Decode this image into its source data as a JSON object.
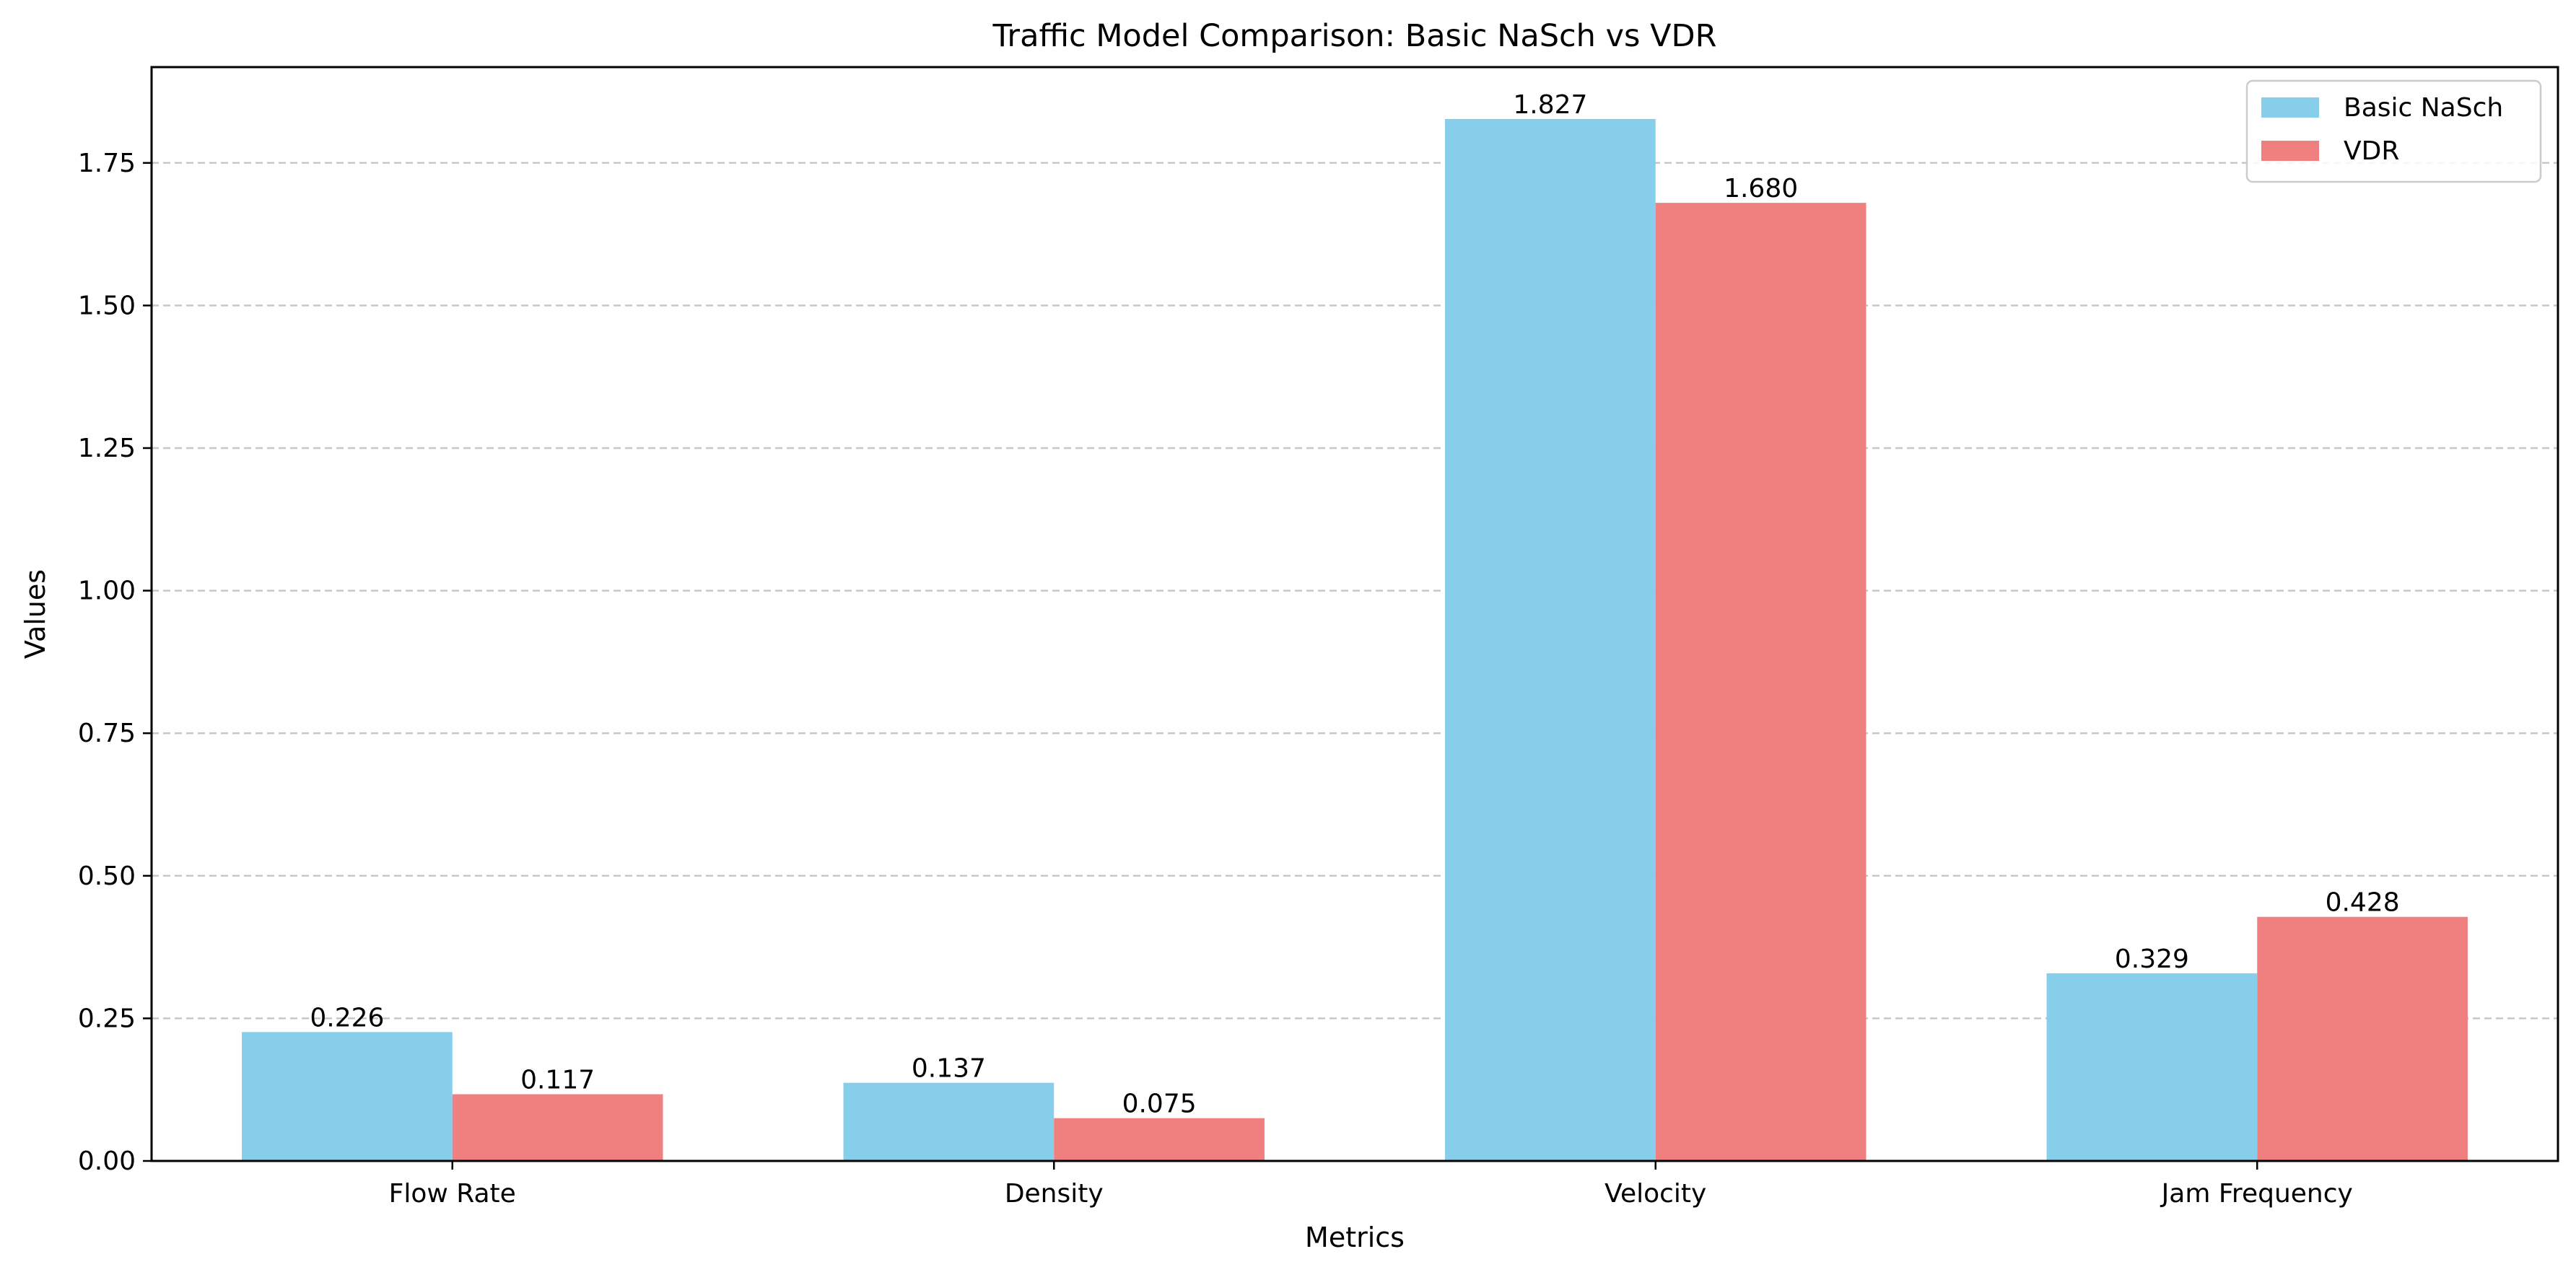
{
  "chart_data": {
    "type": "bar",
    "title": "Traffic Model Comparison: Basic NaSch vs VDR",
    "xlabel": "Metrics",
    "ylabel": "Values",
    "categories": [
      "Flow Rate",
      "Density",
      "Velocity",
      "Jam Frequency"
    ],
    "series": [
      {
        "name": "Basic NaSch",
        "color": "#87CEEB",
        "values": [
          0.226,
          0.137,
          1.827,
          0.329
        ]
      },
      {
        "name": "VDR",
        "color": "#F08080",
        "values": [
          0.117,
          0.075,
          1.68,
          0.428
        ]
      }
    ],
    "data_labels": [
      [
        "0.226",
        "0.137",
        "1.827",
        "0.329"
      ],
      [
        "0.117",
        "0.075",
        "1.680",
        "0.428"
      ]
    ],
    "ylim": [
      0,
      1.918
    ],
    "yticks": [
      0.0,
      0.25,
      0.5,
      0.75,
      1.0,
      1.25,
      1.5,
      1.75
    ],
    "ytick_labels": [
      "0.00",
      "0.25",
      "0.50",
      "0.75",
      "1.00",
      "1.25",
      "1.50",
      "1.75"
    ],
    "grid": {
      "y": true,
      "style": "dashed",
      "color": "#c8c8c8"
    },
    "legend_position": "top-right"
  }
}
